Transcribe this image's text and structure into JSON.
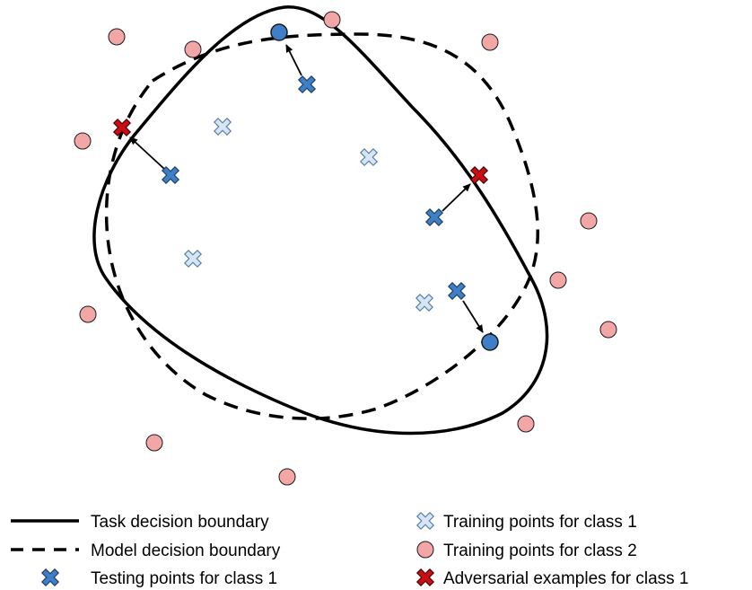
{
  "colors": {
    "boundary": "#000000",
    "testing_fill": "#3f7fc8",
    "training1_fill": "#d6e6f7",
    "training2_fill": "#f2a6a6",
    "adversarial_fill": "#cc0e14",
    "moved_point_fill": "#3f7fc8",
    "outline": "#1a1a1a"
  },
  "icons": {
    "testing_point": "blue-cross-icon",
    "training_class1": "light-blue-cross-icon",
    "training_class2": "pink-circle-icon",
    "adversarial": "red-cross-icon",
    "moved_point": "blue-circle-icon"
  },
  "legend": {
    "task_boundary": "Task decision boundary",
    "model_boundary": "Model decision boundary",
    "testing_points": "Testing points for class 1",
    "training_class1": "Training points for class 1",
    "training_class2": "Training points for class 2",
    "adversarial": "Adversarial examples for class 1"
  }
}
